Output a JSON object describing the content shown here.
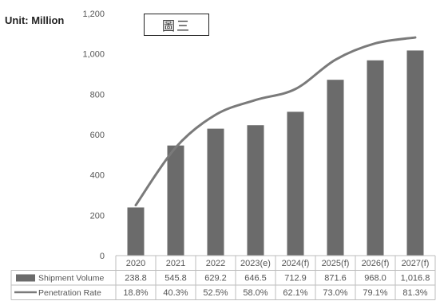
{
  "unit_label": "Unit: Million",
  "figure_label": "圖三",
  "colors": {
    "bar": "#6b6b6b",
    "line": "#7a7a7a",
    "grid": "#bdbdbd",
    "text": "#555555"
  },
  "chart_data": {
    "type": "bar",
    "categories": [
      "2020",
      "2021",
      "2022",
      "2023(e)",
      "2024(f)",
      "2025(f)",
      "2026(f)",
      "2027(f)"
    ],
    "ylim": [
      0,
      1200
    ],
    "yticks": [
      "0",
      "200",
      "400",
      "600",
      "800",
      "1,000",
      "1,200"
    ],
    "grid": false,
    "series": [
      {
        "name": "Shipment Volume",
        "type": "bar",
        "values": [
          238.8,
          545.8,
          629.2,
          646.5,
          712.9,
          871.6,
          968.0,
          1016.8
        ],
        "labels": [
          "238.8",
          "545.8",
          "629.2",
          "646.5",
          "712.9",
          "871.6",
          "968.0",
          "1,016.8"
        ]
      },
      {
        "name": "Penetration Rate",
        "type": "line",
        "values": [
          18.8,
          40.3,
          52.5,
          58.0,
          62.1,
          73.0,
          79.1,
          81.3
        ],
        "labels": [
          "18.8%",
          "40.3%",
          "52.5%",
          "58.0%",
          "62.1%",
          "73.0%",
          "79.1%",
          "81.3%"
        ]
      }
    ]
  }
}
